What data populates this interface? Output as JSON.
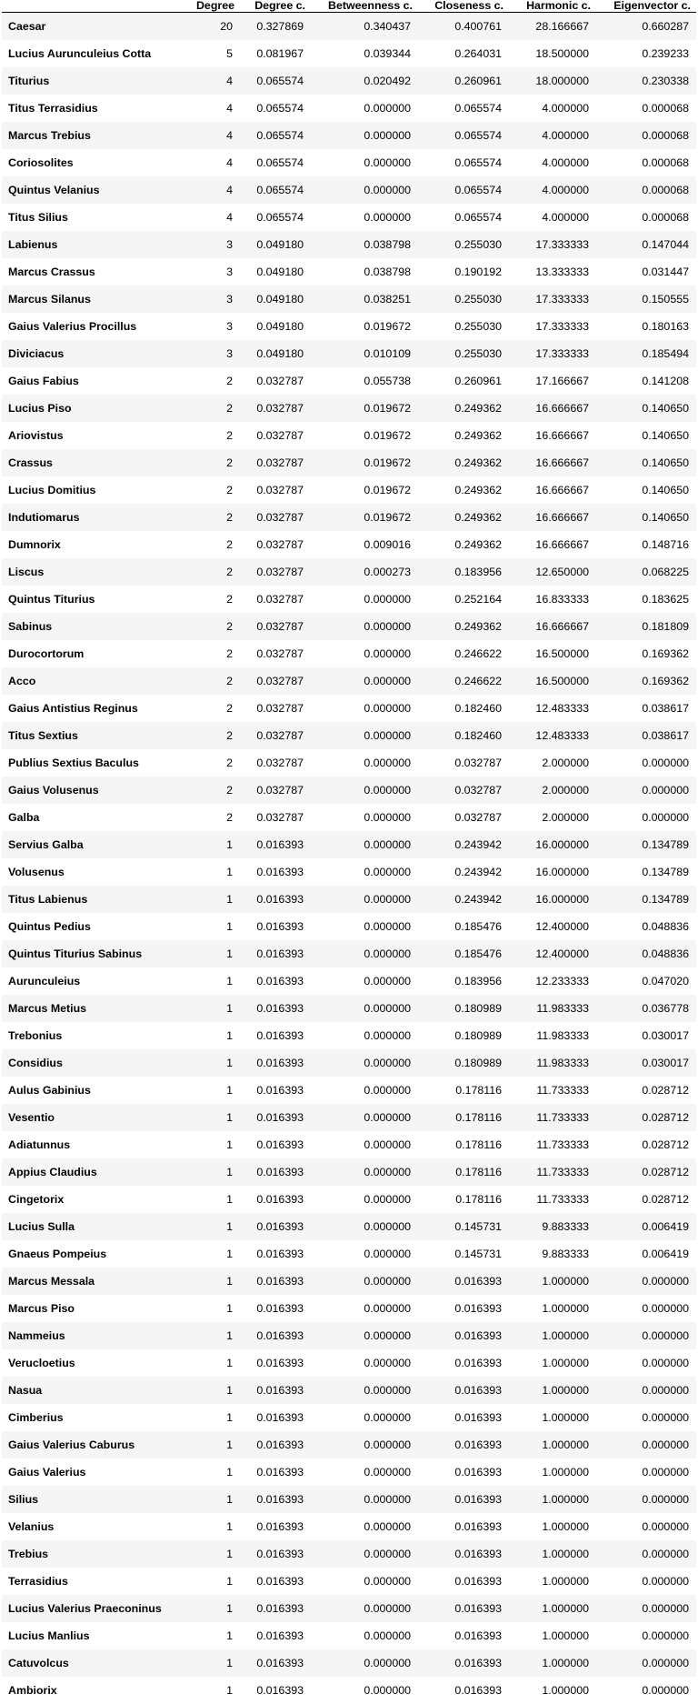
{
  "table": {
    "columns": [
      "",
      "Degree",
      "Degree c.",
      "Betweenness c.",
      "Closeness c.",
      "Harmonic c.",
      "Eigenvector c."
    ],
    "rows": [
      [
        "Caesar",
        "20",
        "0.327869",
        "0.340437",
        "0.400761",
        "28.166667",
        "0.660287"
      ],
      [
        "Lucius Aurunculeius Cotta",
        "5",
        "0.081967",
        "0.039344",
        "0.264031",
        "18.500000",
        "0.239233"
      ],
      [
        "Titurius",
        "4",
        "0.065574",
        "0.020492",
        "0.260961",
        "18.000000",
        "0.230338"
      ],
      [
        "Titus Terrasidius",
        "4",
        "0.065574",
        "0.000000",
        "0.065574",
        "4.000000",
        "0.000068"
      ],
      [
        "Marcus Trebius",
        "4",
        "0.065574",
        "0.000000",
        "0.065574",
        "4.000000",
        "0.000068"
      ],
      [
        "Coriosolites",
        "4",
        "0.065574",
        "0.000000",
        "0.065574",
        "4.000000",
        "0.000068"
      ],
      [
        "Quintus Velanius",
        "4",
        "0.065574",
        "0.000000",
        "0.065574",
        "4.000000",
        "0.000068"
      ],
      [
        "Titus Silius",
        "4",
        "0.065574",
        "0.000000",
        "0.065574",
        "4.000000",
        "0.000068"
      ],
      [
        "Labienus",
        "3",
        "0.049180",
        "0.038798",
        "0.255030",
        "17.333333",
        "0.147044"
      ],
      [
        "Marcus Crassus",
        "3",
        "0.049180",
        "0.038798",
        "0.190192",
        "13.333333",
        "0.031447"
      ],
      [
        "Marcus Silanus",
        "3",
        "0.049180",
        "0.038251",
        "0.255030",
        "17.333333",
        "0.150555"
      ],
      [
        "Gaius Valerius Procillus",
        "3",
        "0.049180",
        "0.019672",
        "0.255030",
        "17.333333",
        "0.180163"
      ],
      [
        "Diviciacus",
        "3",
        "0.049180",
        "0.010109",
        "0.255030",
        "17.333333",
        "0.185494"
      ],
      [
        "Gaius Fabius",
        "2",
        "0.032787",
        "0.055738",
        "0.260961",
        "17.166667",
        "0.141208"
      ],
      [
        "Lucius Piso",
        "2",
        "0.032787",
        "0.019672",
        "0.249362",
        "16.666667",
        "0.140650"
      ],
      [
        "Ariovistus",
        "2",
        "0.032787",
        "0.019672",
        "0.249362",
        "16.666667",
        "0.140650"
      ],
      [
        "Crassus",
        "2",
        "0.032787",
        "0.019672",
        "0.249362",
        "16.666667",
        "0.140650"
      ],
      [
        "Lucius Domitius",
        "2",
        "0.032787",
        "0.019672",
        "0.249362",
        "16.666667",
        "0.140650"
      ],
      [
        "Indutiomarus",
        "2",
        "0.032787",
        "0.019672",
        "0.249362",
        "16.666667",
        "0.140650"
      ],
      [
        "Dumnorix",
        "2",
        "0.032787",
        "0.009016",
        "0.249362",
        "16.666667",
        "0.148716"
      ],
      [
        "Liscus",
        "2",
        "0.032787",
        "0.000273",
        "0.183956",
        "12.650000",
        "0.068225"
      ],
      [
        "Quintus Titurius",
        "2",
        "0.032787",
        "0.000000",
        "0.252164",
        "16.833333",
        "0.183625"
      ],
      [
        "Sabinus",
        "2",
        "0.032787",
        "0.000000",
        "0.249362",
        "16.666667",
        "0.181809"
      ],
      [
        "Durocortorum",
        "2",
        "0.032787",
        "0.000000",
        "0.246622",
        "16.500000",
        "0.169362"
      ],
      [
        "Acco",
        "2",
        "0.032787",
        "0.000000",
        "0.246622",
        "16.500000",
        "0.169362"
      ],
      [
        "Gaius Antistius Reginus",
        "2",
        "0.032787",
        "0.000000",
        "0.182460",
        "12.483333",
        "0.038617"
      ],
      [
        "Titus Sextius",
        "2",
        "0.032787",
        "0.000000",
        "0.182460",
        "12.483333",
        "0.038617"
      ],
      [
        "Publius Sextius Baculus",
        "2",
        "0.032787",
        "0.000000",
        "0.032787",
        "2.000000",
        "0.000000"
      ],
      [
        "Gaius Volusenus",
        "2",
        "0.032787",
        "0.000000",
        "0.032787",
        "2.000000",
        "0.000000"
      ],
      [
        "Galba",
        "2",
        "0.032787",
        "0.000000",
        "0.032787",
        "2.000000",
        "0.000000"
      ],
      [
        "Servius Galba",
        "1",
        "0.016393",
        "0.000000",
        "0.243942",
        "16.000000",
        "0.134789"
      ],
      [
        "Volusenus",
        "1",
        "0.016393",
        "0.000000",
        "0.243942",
        "16.000000",
        "0.134789"
      ],
      [
        "Titus Labienus",
        "1",
        "0.016393",
        "0.000000",
        "0.243942",
        "16.000000",
        "0.134789"
      ],
      [
        "Quintus Pedius",
        "1",
        "0.016393",
        "0.000000",
        "0.185476",
        "12.400000",
        "0.048836"
      ],
      [
        "Quintus Titurius Sabinus",
        "1",
        "0.016393",
        "0.000000",
        "0.185476",
        "12.400000",
        "0.048836"
      ],
      [
        "Aurunculeius",
        "1",
        "0.016393",
        "0.000000",
        "0.183956",
        "12.233333",
        "0.047020"
      ],
      [
        "Marcus Metius",
        "1",
        "0.016393",
        "0.000000",
        "0.180989",
        "11.983333",
        "0.036778"
      ],
      [
        "Trebonius",
        "1",
        "0.016393",
        "0.000000",
        "0.180989",
        "11.983333",
        "0.030017"
      ],
      [
        "Considius",
        "1",
        "0.016393",
        "0.000000",
        "0.180989",
        "11.983333",
        "0.030017"
      ],
      [
        "Aulus Gabinius",
        "1",
        "0.016393",
        "0.000000",
        "0.178116",
        "11.733333",
        "0.028712"
      ],
      [
        "Vesentio",
        "1",
        "0.016393",
        "0.000000",
        "0.178116",
        "11.733333",
        "0.028712"
      ],
      [
        "Adiatunnus",
        "1",
        "0.016393",
        "0.000000",
        "0.178116",
        "11.733333",
        "0.028712"
      ],
      [
        "Appius Claudius",
        "1",
        "0.016393",
        "0.000000",
        "0.178116",
        "11.733333",
        "0.028712"
      ],
      [
        "Cingetorix",
        "1",
        "0.016393",
        "0.000000",
        "0.178116",
        "11.733333",
        "0.028712"
      ],
      [
        "Lucius Sulla",
        "1",
        "0.016393",
        "0.000000",
        "0.145731",
        "9.883333",
        "0.006419"
      ],
      [
        "Gnaeus Pompeius",
        "1",
        "0.016393",
        "0.000000",
        "0.145731",
        "9.883333",
        "0.006419"
      ],
      [
        "Marcus Messala",
        "1",
        "0.016393",
        "0.000000",
        "0.016393",
        "1.000000",
        "0.000000"
      ],
      [
        "Marcus Piso",
        "1",
        "0.016393",
        "0.000000",
        "0.016393",
        "1.000000",
        "0.000000"
      ],
      [
        "Nammeius",
        "1",
        "0.016393",
        "0.000000",
        "0.016393",
        "1.000000",
        "0.000000"
      ],
      [
        "Verucloetius",
        "1",
        "0.016393",
        "0.000000",
        "0.016393",
        "1.000000",
        "0.000000"
      ],
      [
        "Nasua",
        "1",
        "0.016393",
        "0.000000",
        "0.016393",
        "1.000000",
        "0.000000"
      ],
      [
        "Cimberius",
        "1",
        "0.016393",
        "0.000000",
        "0.016393",
        "1.000000",
        "0.000000"
      ],
      [
        "Gaius Valerius Caburus",
        "1",
        "0.016393",
        "0.000000",
        "0.016393",
        "1.000000",
        "0.000000"
      ],
      [
        "Gaius Valerius",
        "1",
        "0.016393",
        "0.000000",
        "0.016393",
        "1.000000",
        "0.000000"
      ],
      [
        "Silius",
        "1",
        "0.016393",
        "0.000000",
        "0.016393",
        "1.000000",
        "0.000000"
      ],
      [
        "Velanius",
        "1",
        "0.016393",
        "0.000000",
        "0.016393",
        "1.000000",
        "0.000000"
      ],
      [
        "Trebius",
        "1",
        "0.016393",
        "0.000000",
        "0.016393",
        "1.000000",
        "0.000000"
      ],
      [
        "Terrasidius",
        "1",
        "0.016393",
        "0.000000",
        "0.016393",
        "1.000000",
        "0.000000"
      ],
      [
        "Lucius Valerius Praeconinus",
        "1",
        "0.016393",
        "0.000000",
        "0.016393",
        "1.000000",
        "0.000000"
      ],
      [
        "Lucius Manlius",
        "1",
        "0.016393",
        "0.000000",
        "0.016393",
        "1.000000",
        "0.000000"
      ],
      [
        "Catuvolcus",
        "1",
        "0.016393",
        "0.000000",
        "0.016393",
        "1.000000",
        "0.000000"
      ],
      [
        "Ambiorix",
        "1",
        "0.016393",
        "0.000000",
        "0.016393",
        "1.000000",
        "0.000000"
      ]
    ]
  }
}
